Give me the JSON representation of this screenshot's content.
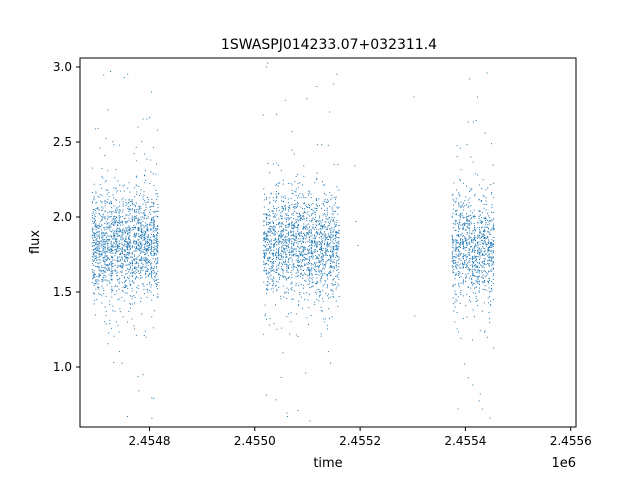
{
  "chart_data": {
    "type": "scatter",
    "title": "1SWASPJ014233.07+032311.4",
    "xlabel": "time",
    "ylabel": "flux",
    "x_offset_label": "1e6",
    "xlim": [
      2454668,
      2455610
    ],
    "ylim": [
      0.6,
      3.06
    ],
    "x_ticks": [
      2454800,
      2455000,
      2455200,
      2455400,
      2455600
    ],
    "x_tick_labels": [
      "2.4548",
      "2.4550",
      "2.4552",
      "2.4554",
      "2.4556"
    ],
    "y_ticks": [
      1.0,
      1.5,
      2.0,
      2.5,
      3.0
    ],
    "y_tick_labels": [
      "1.0",
      "1.5",
      "2.0",
      "2.5",
      "3.0"
    ],
    "grid": false,
    "marker_color": "#1f77b4",
    "series": [
      {
        "clusters": [
          {
            "x_range": [
              2454690,
              2454817
            ],
            "median": 1.82,
            "count": 1700
          },
          {
            "x_range": [
              2455016,
              2455160
            ],
            "median": 1.82,
            "count": 1700
          },
          {
            "x_range": [
              2455374,
              2455455
            ],
            "median": 1.8,
            "count": 900
          }
        ],
        "points": [
          [
            2454700,
            1.76
          ],
          [
            2454715,
            2.41
          ],
          [
            2454726,
            2.97
          ],
          [
            2454732,
            1.03
          ],
          [
            2454740,
            2.24
          ],
          [
            2454752,
            2.93
          ],
          [
            2454758,
            0.67
          ],
          [
            2454766,
            2.1
          ],
          [
            2454778,
            2.6
          ],
          [
            2454790,
            1.21
          ],
          [
            2454802,
            2.38
          ],
          [
            2454808,
            0.79
          ],
          [
            2455016,
            2.68
          ],
          [
            2455022,
            3.0
          ],
          [
            2455028,
            1.28
          ],
          [
            2455040,
            2.21
          ],
          [
            2455050,
            0.93
          ],
          [
            2455062,
            0.67
          ],
          [
            2455075,
            2.42
          ],
          [
            2455082,
            0.71
          ],
          [
            2455093,
            2.34
          ],
          [
            2455105,
            0.64
          ],
          [
            2455118,
            2.87
          ],
          [
            2455130,
            1.32
          ],
          [
            2455142,
            2.7
          ],
          [
            2455152,
            2.13
          ],
          [
            2455160,
            1.47
          ],
          [
            2455190,
            2.34
          ],
          [
            2455192,
            1.97
          ],
          [
            2455196,
            1.81
          ],
          [
            2455302,
            2.8
          ],
          [
            2455304,
            1.34
          ],
          [
            2455383,
            2.18
          ],
          [
            2455386,
            0.72
          ],
          [
            2455396,
            1.58
          ],
          [
            2455408,
            2.92
          ],
          [
            2455414,
            0.88
          ],
          [
            2455423,
            2.8
          ],
          [
            2455432,
            0.72
          ],
          [
            2455441,
            2.96
          ],
          [
            2455447,
            0.66
          ],
          [
            2455455,
            1.92
          ]
        ]
      }
    ]
  }
}
